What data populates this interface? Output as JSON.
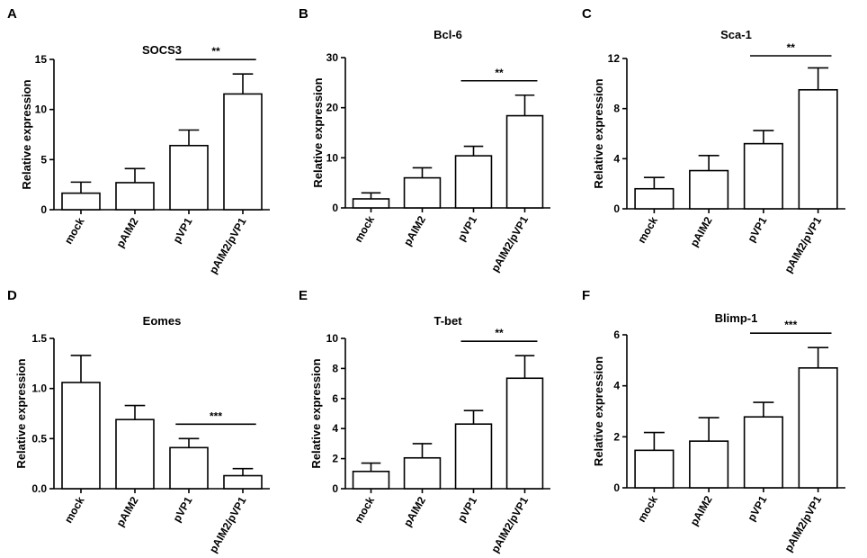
{
  "chart_data": [
    {
      "id": "A",
      "type": "bar",
      "title": "SOCS3",
      "ylabel": "Relative expression",
      "categories": [
        "mock",
        "pAIM2",
        "pVP1",
        "pAIM2/pVP1"
      ],
      "values": [
        1.65,
        2.7,
        6.4,
        11.55
      ],
      "errors": [
        1.1,
        1.4,
        1.55,
        2.0
      ],
      "ylim": [
        0,
        15
      ],
      "yticks": [
        0,
        5,
        10,
        15
      ],
      "yticklabels": [
        "0",
        "5",
        "10",
        "15"
      ],
      "significance": [
        {
          "from": 2,
          "to": 3,
          "label": "**"
        }
      ]
    },
    {
      "id": "B",
      "type": "bar",
      "title": "Bcl-6",
      "ylabel": "Relative  expression",
      "categories": [
        "mock",
        "pAIM2",
        "pVP1",
        "pAIM2/pVP1"
      ],
      "values": [
        1.8,
        6.0,
        10.4,
        18.4
      ],
      "errors": [
        1.2,
        2.0,
        1.9,
        4.1
      ],
      "ylim": [
        0,
        30
      ],
      "yticks": [
        0,
        10,
        20,
        30
      ],
      "yticklabels": [
        "0",
        "10",
        "20",
        "30"
      ],
      "significance": [
        {
          "from": 2,
          "to": 3,
          "label": "**"
        }
      ]
    },
    {
      "id": "C",
      "type": "bar",
      "title": "Sca-1",
      "ylabel": "Relative expression",
      "categories": [
        "mock",
        "pAIM2",
        "pVP1",
        "pAIM2/pVP1"
      ],
      "values": [
        1.6,
        3.05,
        5.2,
        9.5
      ],
      "errors": [
        0.9,
        1.2,
        1.05,
        1.75
      ],
      "ylim": [
        0,
        12
      ],
      "yticks": [
        0,
        4,
        8,
        12
      ],
      "yticklabels": [
        "0",
        "4",
        "8",
        "12"
      ],
      "significance": [
        {
          "from": 2,
          "to": 3,
          "label": "**"
        }
      ]
    },
    {
      "id": "D",
      "type": "bar",
      "title": "Eomes",
      "ylabel": "Relative expression",
      "categories": [
        "mock",
        "pAIM2",
        "pVP1",
        "pAIM2/pVP1"
      ],
      "values": [
        1.06,
        0.69,
        0.41,
        0.13
      ],
      "errors": [
        0.27,
        0.14,
        0.09,
        0.07
      ],
      "ylim": [
        0,
        1.5
      ],
      "yticks": [
        0,
        0.5,
        1.0,
        1.5
      ],
      "yticklabels": [
        "0.0",
        "0.5",
        "1.0",
        "1.5"
      ],
      "significance": [
        {
          "from": 2,
          "to": 3,
          "label": "***"
        }
      ]
    },
    {
      "id": "E",
      "type": "bar",
      "title": "T-bet",
      "ylabel": "Relative expression",
      "categories": [
        "mock",
        "pAIM2",
        "pVP1",
        "pAIM2/pVP1"
      ],
      "values": [
        1.15,
        2.05,
        4.3,
        7.35
      ],
      "errors": [
        0.55,
        0.95,
        0.9,
        1.5
      ],
      "ylim": [
        0,
        10
      ],
      "yticks": [
        0,
        2,
        4,
        6,
        8,
        10
      ],
      "yticklabels": [
        "0",
        "2",
        "4",
        "6",
        "8",
        "10"
      ],
      "significance": [
        {
          "from": 2,
          "to": 3,
          "label": "**"
        }
      ]
    },
    {
      "id": "F",
      "type": "bar",
      "title": "Blimp-1",
      "ylabel": "Relative expression",
      "categories": [
        "mock",
        "pAIM2",
        "pVP1",
        "pAIM2/pVP1"
      ],
      "values": [
        1.47,
        1.83,
        2.78,
        4.7
      ],
      "errors": [
        0.7,
        0.92,
        0.57,
        0.8
      ],
      "ylim": [
        0,
        6
      ],
      "yticks": [
        0,
        2,
        4,
        6
      ],
      "yticklabels": [
        "0",
        "2",
        "4",
        "6"
      ],
      "significance": [
        {
          "from": 2,
          "to": 3,
          "label": "***"
        }
      ]
    }
  ]
}
